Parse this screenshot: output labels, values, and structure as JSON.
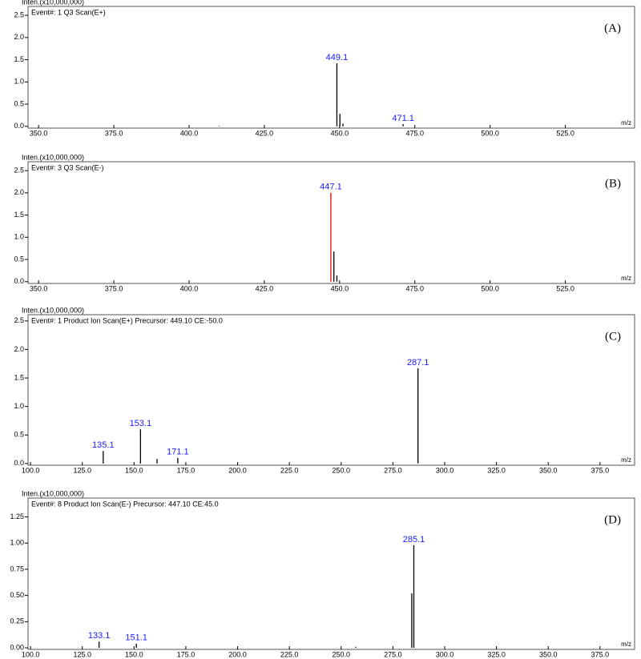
{
  "chart_data": [
    {
      "type": "stem",
      "title": "(A)",
      "subtitle": "Event#: 1 Q3 Scan(E+)",
      "ylabel": "Inten.(x10,000,000)",
      "xlabel": "m/z",
      "x": [
        410.0,
        449.1,
        450.1,
        451.1,
        471.1
      ],
      "values": [
        0.01,
        1.42,
        0.28,
        0.06,
        0.05
      ],
      "labels": [
        null,
        "449.1",
        null,
        null,
        "471.1"
      ],
      "colors": [
        "#000000",
        "#000000",
        "#000000",
        "#000000",
        "#000000"
      ],
      "xlim": [
        346.5,
        548
      ],
      "ylim": [
        -0.04,
        2.7
      ],
      "xticks": [
        {
          "value": 350,
          "label": "350.0"
        },
        {
          "value": 375,
          "label": "375.0"
        },
        {
          "value": 400,
          "label": "400.0"
        },
        {
          "value": 425,
          "label": "425.0"
        },
        {
          "value": 450,
          "label": "450.0"
        },
        {
          "value": 475,
          "label": "475.0"
        },
        {
          "value": 500,
          "label": "500.0"
        },
        {
          "value": 525,
          "label": "525.0"
        }
      ],
      "yticks": [
        {
          "value": 0,
          "label": "0.0"
        },
        {
          "value": 0.5,
          "label": "0.5"
        },
        {
          "value": 1,
          "label": "1.0"
        },
        {
          "value": 1.5,
          "label": "1.5"
        },
        {
          "value": 2,
          "label": "2.0"
        },
        {
          "value": 2.5,
          "label": "2.5"
        }
      ]
    },
    {
      "type": "stem",
      "title": "(B)",
      "subtitle": "Event#: 3 Q3 Scan(E-)",
      "ylabel": "Inten.(x10,000,000)",
      "xlabel": "m/z",
      "x": [
        447.1,
        448.1,
        449.1
      ],
      "values": [
        2.0,
        0.68,
        0.14
      ],
      "labels": [
        "447.1",
        null,
        null
      ],
      "colors": [
        "#e00000",
        "#000000",
        "#000000"
      ],
      "xlim": [
        346.5,
        548
      ],
      "ylim": [
        -0.04,
        2.7
      ],
      "xticks": [
        {
          "value": 350,
          "label": "350.0"
        },
        {
          "value": 375,
          "label": "375.0"
        },
        {
          "value": 400,
          "label": "400.0"
        },
        {
          "value": 425,
          "label": "425.0"
        },
        {
          "value": 450,
          "label": "450.0"
        },
        {
          "value": 475,
          "label": "475.0"
        },
        {
          "value": 500,
          "label": "500.0"
        },
        {
          "value": 525,
          "label": "525.0"
        }
      ],
      "yticks": [
        {
          "value": 0,
          "label": "0.0"
        },
        {
          "value": 0.5,
          "label": "0.5"
        },
        {
          "value": 1,
          "label": "1.0"
        },
        {
          "value": 1.5,
          "label": "1.5"
        },
        {
          "value": 2,
          "label": "2.0"
        },
        {
          "value": 2.5,
          "label": "2.5"
        }
      ]
    },
    {
      "type": "stem",
      "title": "(C)",
      "subtitle": "Event#: 1 Product Ion Scan(E+)   Precursor: 449.10 CE:-50.0",
      "ylabel": "Inten.(x10,000,000)",
      "xlabel": "m/z",
      "x": [
        135.1,
        153.1,
        161.1,
        171.1,
        287.1
      ],
      "values": [
        0.22,
        0.6,
        0.08,
        0.1,
        1.67
      ],
      "labels": [
        "135.1",
        "153.1",
        null,
        "171.1",
        "287.1"
      ],
      "colors": [
        "#000000",
        "#000000",
        "#000000",
        "#000000",
        "#000000"
      ],
      "xlim": [
        98.8,
        391.7
      ],
      "ylim": [
        -0.03,
        2.61
      ],
      "xticks": [
        {
          "value": 100,
          "label": "100.0"
        },
        {
          "value": 125,
          "label": "125.0"
        },
        {
          "value": 150,
          "label": "150.0"
        },
        {
          "value": 175,
          "label": "175.0"
        },
        {
          "value": 200,
          "label": "200.0"
        },
        {
          "value": 225,
          "label": "225.0"
        },
        {
          "value": 250,
          "label": "250.0"
        },
        {
          "value": 275,
          "label": "275.0"
        },
        {
          "value": 300,
          "label": "300.0"
        },
        {
          "value": 325,
          "label": "325.0"
        },
        {
          "value": 350,
          "label": "350.0"
        },
        {
          "value": 375,
          "label": "375.0"
        }
      ],
      "yticks": [
        {
          "value": 0,
          "label": "0.0"
        },
        {
          "value": 0.5,
          "label": "0.5"
        },
        {
          "value": 1,
          "label": "1.0"
        },
        {
          "value": 1.5,
          "label": "1.5"
        },
        {
          "value": 2,
          "label": "2.0"
        },
        {
          "value": 2.5,
          "label": "2.5"
        }
      ]
    },
    {
      "type": "stem",
      "title": "(D)",
      "subtitle": "Event#: 8 Product Ion Scan(E-)   Precursor: 447.10 CE:45.0",
      "ylabel": "Inten.(x10,000,000)",
      "xlabel": "m/z",
      "x": [
        133.1,
        151.1,
        257.1,
        284.1,
        285.1
      ],
      "values": [
        0.06,
        0.04,
        0.01,
        0.52,
        0.98
      ],
      "labels": [
        "133.1",
        "151.1",
        null,
        null,
        "285.1"
      ],
      "colors": [
        "#000000",
        "#000000",
        "#000000",
        "#000000",
        "#000000"
      ],
      "xlim": [
        98.8,
        391.7
      ],
      "ylim": [
        -0.015,
        1.43
      ],
      "xticks": [
        {
          "value": 100,
          "label": "100.0"
        },
        {
          "value": 125,
          "label": "125.0"
        },
        {
          "value": 150,
          "label": "150.0"
        },
        {
          "value": 175,
          "label": "175.0"
        },
        {
          "value": 200,
          "label": "200.0"
        },
        {
          "value": 225,
          "label": "225.0"
        },
        {
          "value": 250,
          "label": "250.0"
        },
        {
          "value": 275,
          "label": "275.0"
        },
        {
          "value": 300,
          "label": "300.0"
        },
        {
          "value": 325,
          "label": "325.0"
        },
        {
          "value": 350,
          "label": "350.0"
        },
        {
          "value": 375,
          "label": "375.0"
        }
      ],
      "yticks": [
        {
          "value": 0,
          "label": "0.00"
        },
        {
          "value": 0.25,
          "label": "0.25"
        },
        {
          "value": 0.5,
          "label": "0.50"
        },
        {
          "value": 0.75,
          "label": "0.75"
        },
        {
          "value": 1,
          "label": "1.00"
        },
        {
          "value": 1.25,
          "label": "1.25"
        }
      ]
    }
  ]
}
